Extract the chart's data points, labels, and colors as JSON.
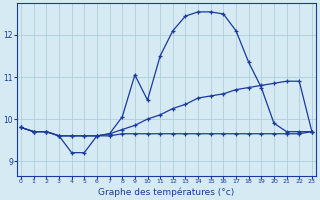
{
  "title": "Graphe des températures (°c)",
  "bg_color": "#d5eaf2",
  "line_color": "#1a3a9e",
  "grid_color": "#a8c8d8",
  "x_ticks": [
    0,
    1,
    2,
    3,
    4,
    5,
    6,
    7,
    8,
    9,
    10,
    11,
    12,
    13,
    14,
    15,
    16,
    17,
    18,
    19,
    20,
    21,
    22,
    23
  ],
  "y_ticks": [
    9,
    10,
    11,
    12
  ],
  "ylim": [
    8.65,
    12.75
  ],
  "xlim": [
    -0.3,
    23.3
  ],
  "curve1_x": [
    0,
    1,
    2,
    3,
    4,
    5,
    6,
    7,
    8,
    9,
    10,
    11,
    12,
    13,
    14,
    15,
    16,
    17,
    18,
    19,
    20,
    21,
    22,
    23
  ],
  "curve1_y": [
    9.8,
    9.7,
    9.7,
    9.6,
    9.2,
    9.2,
    9.6,
    9.65,
    10.05,
    11.05,
    10.45,
    11.5,
    12.1,
    12.45,
    12.55,
    12.55,
    12.5,
    12.1,
    11.35,
    10.75,
    9.9,
    9.7,
    9.7,
    9.7
  ],
  "curve2_x": [
    0,
    1,
    2,
    3,
    4,
    5,
    6,
    7,
    8,
    9,
    10,
    11,
    12,
    13,
    14,
    15,
    16,
    17,
    18,
    19,
    20,
    21,
    22,
    23
  ],
  "curve2_y": [
    9.8,
    9.7,
    9.7,
    9.6,
    9.6,
    9.6,
    9.6,
    9.6,
    9.65,
    9.65,
    9.65,
    9.65,
    9.65,
    9.65,
    9.65,
    9.65,
    9.65,
    9.65,
    9.65,
    9.65,
    9.65,
    9.65,
    9.65,
    9.7
  ],
  "curve3_x": [
    0,
    1,
    2,
    3,
    4,
    5,
    6,
    7,
    8,
    9,
    10,
    11,
    12,
    13,
    14,
    15,
    16,
    17,
    18,
    19,
    20,
    21,
    22,
    23
  ],
  "curve3_y": [
    9.8,
    9.7,
    9.7,
    9.6,
    9.6,
    9.6,
    9.6,
    9.65,
    9.75,
    9.85,
    10.0,
    10.1,
    10.25,
    10.35,
    10.5,
    10.55,
    10.6,
    10.7,
    10.75,
    10.8,
    10.85,
    10.9,
    10.9,
    9.7
  ]
}
